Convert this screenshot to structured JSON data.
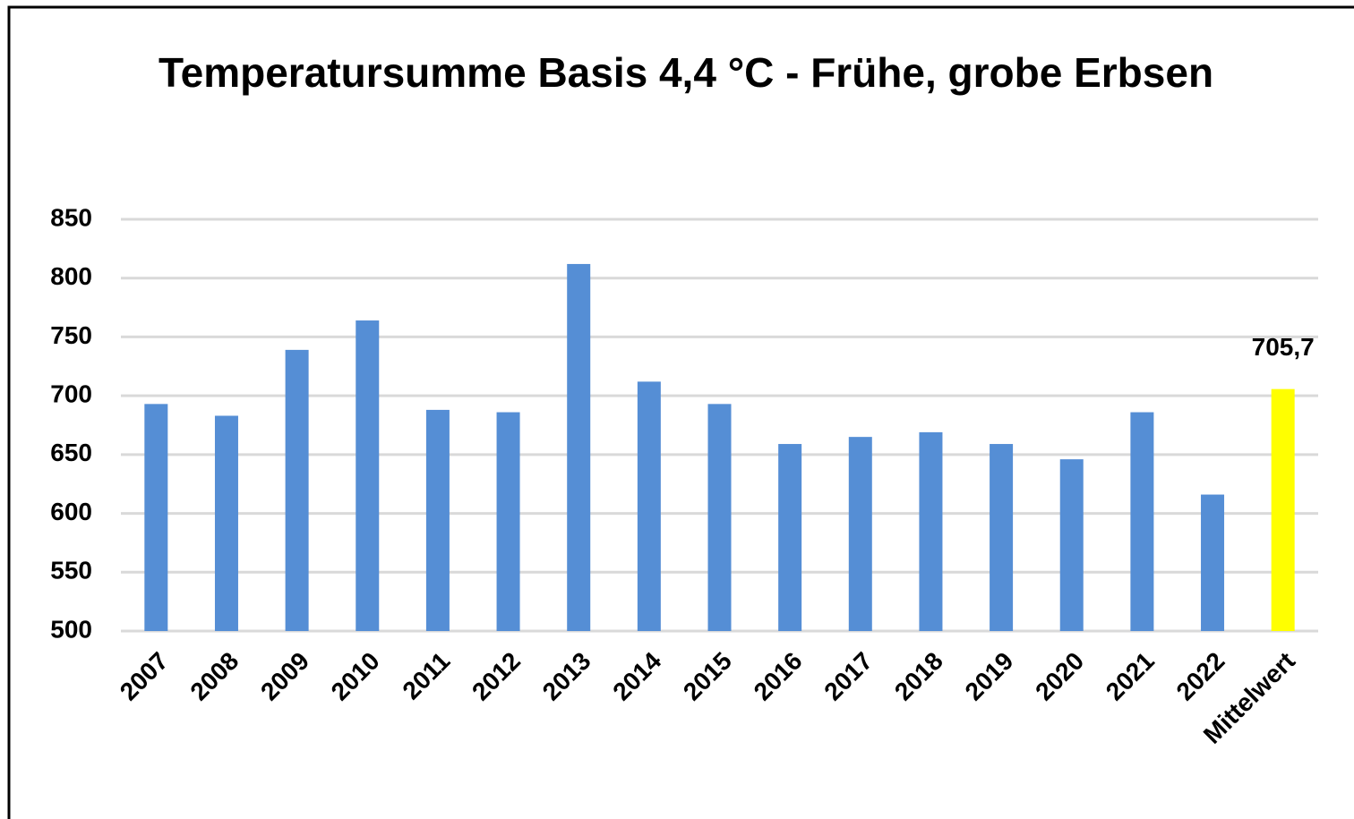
{
  "chart_data": {
    "type": "bar",
    "title": "Temperatursumme Basis 4,4 °C - Frühe, grobe Erbsen",
    "categories": [
      "2007",
      "2008",
      "2009",
      "2010",
      "2011",
      "2012",
      "2013",
      "2014",
      "2015",
      "2016",
      "2017",
      "2018",
      "2019",
      "2020",
      "2021",
      "2022",
      "Mittelwert"
    ],
    "values": [
      693,
      683,
      739,
      764,
      688,
      686,
      812,
      712,
      693,
      659,
      665,
      669,
      659,
      646,
      686,
      616,
      705.7
    ],
    "value_labels": [
      null,
      null,
      null,
      null,
      null,
      null,
      null,
      null,
      null,
      null,
      null,
      null,
      null,
      null,
      null,
      null,
      "705,7"
    ],
    "colors": [
      "#558ed5",
      "#558ed5",
      "#558ed5",
      "#558ed5",
      "#558ed5",
      "#558ed5",
      "#558ed5",
      "#558ed5",
      "#558ed5",
      "#558ed5",
      "#558ed5",
      "#558ed5",
      "#558ed5",
      "#558ed5",
      "#558ed5",
      "#558ed5",
      "#ffff00"
    ],
    "ylim": [
      500,
      850
    ],
    "yticks": [
      500,
      550,
      600,
      650,
      700,
      750,
      800,
      850
    ],
    "grid": true
  }
}
